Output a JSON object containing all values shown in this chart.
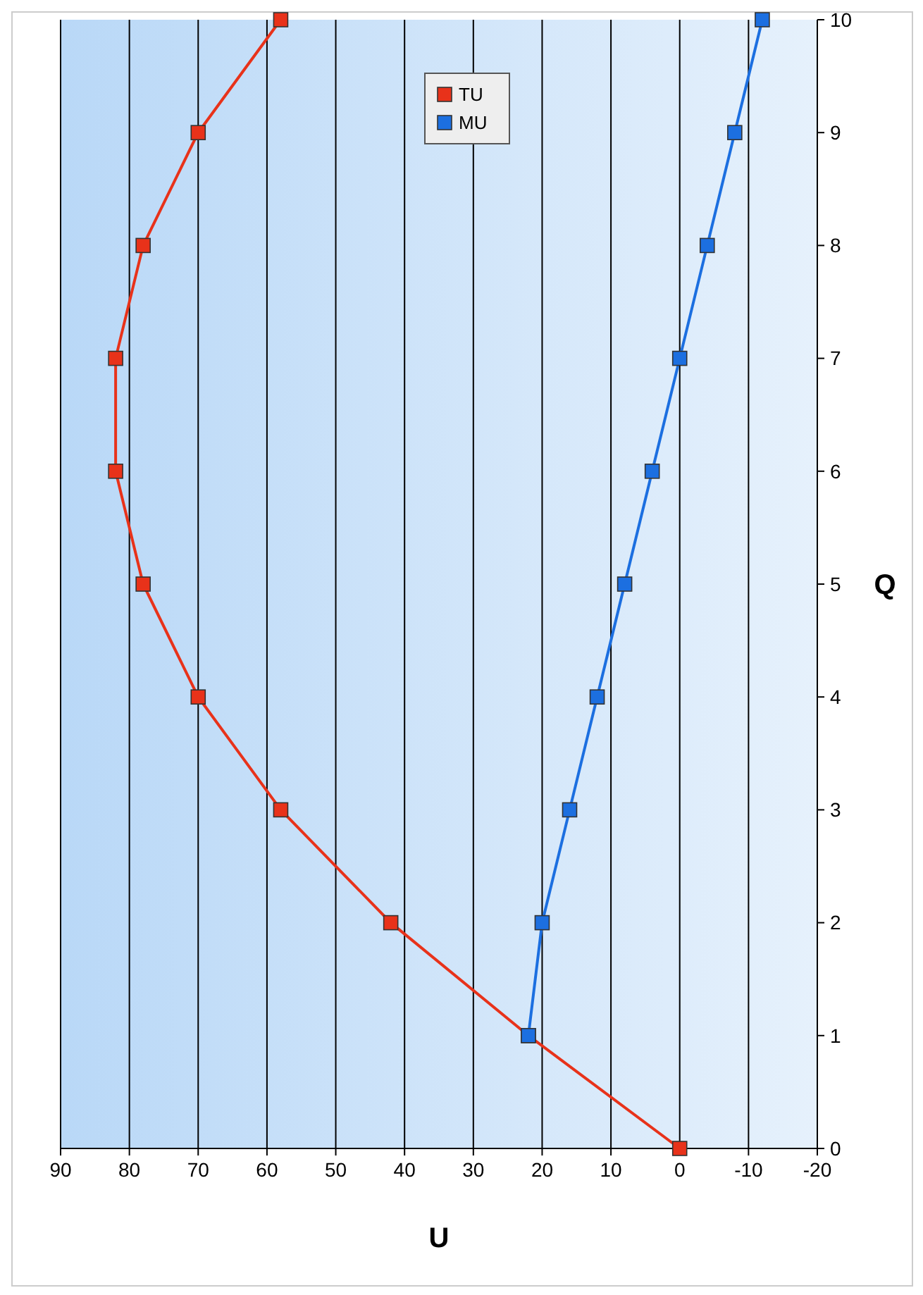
{
  "chart_data": {
    "type": "line",
    "xlabel": "U",
    "ylabel": "Q",
    "series": [
      {
        "name": "TU",
        "color": "#e8321a",
        "x": [
          0,
          22,
          42,
          58,
          70,
          78,
          82,
          82,
          78,
          70,
          58
        ],
        "values": [
          0,
          1,
          2,
          3,
          4,
          5,
          6,
          7,
          8,
          9,
          10
        ]
      },
      {
        "name": "MU",
        "color": "#1c6fe0",
        "x": [
          22,
          20,
          16,
          12,
          8,
          4,
          0,
          -4,
          -8,
          -12
        ],
        "values": [
          1,
          2,
          3,
          4,
          5,
          6,
          7,
          8,
          9,
          10
        ]
      }
    ],
    "xlim": [
      90,
      -20
    ],
    "xticks": [
      90,
      80,
      70,
      60,
      50,
      40,
      30,
      20,
      10,
      0,
      -10,
      -20
    ],
    "ylim": [
      0,
      10
    ],
    "yticks": [
      0,
      1,
      2,
      3,
      4,
      5,
      6,
      7,
      8,
      9,
      10
    ],
    "grid": "x",
    "legend": "top",
    "marker": "square",
    "line_style": "solid"
  }
}
